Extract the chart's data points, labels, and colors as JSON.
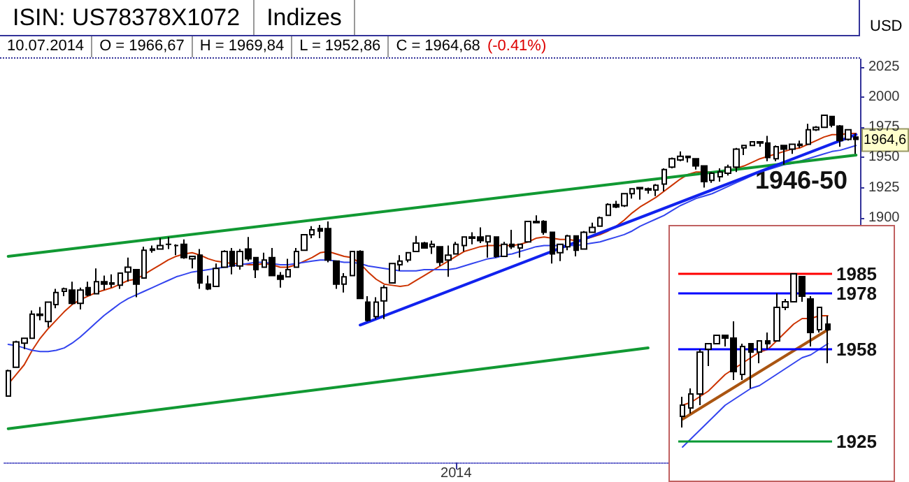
{
  "chart_data": [
    {
      "type": "candlestick",
      "title": "ISIN: US78378X1072",
      "subtitle": "Indizes",
      "ylabel": "USD",
      "color": "#000000",
      "annotations": [
        "10.07.2014",
        "O = 1966,67",
        "H = 1969,84",
        "L = 1952,86",
        "C = 1964,68",
        "(-0.41%)",
        "1964,6",
        "1946-50"
      ],
      "categories": [
        null,
        null,
        null,
        null,
        null,
        null,
        null,
        null,
        null,
        null,
        null,
        null,
        null,
        null,
        null,
        null,
        null,
        null,
        null,
        null,
        null,
        null,
        null,
        null,
        null,
        null,
        null,
        null,
        null,
        null,
        null,
        null,
        null,
        null,
        null,
        null,
        null,
        null,
        null,
        null,
        null,
        null,
        null,
        null,
        null,
        null,
        null,
        null,
        null,
        null,
        null,
        null,
        null,
        null,
        null,
        null,
        "2014",
        null,
        null,
        null,
        null,
        null,
        null,
        null,
        null,
        null,
        null,
        null,
        null,
        null,
        null,
        null,
        null,
        null,
        null,
        null,
        null,
        null,
        null,
        null,
        null,
        null,
        null,
        null,
        null,
        null,
        null,
        null,
        null,
        null,
        null,
        null,
        null,
        null,
        null,
        null,
        null,
        null,
        null,
        null,
        null,
        null,
        null,
        null,
        null,
        null,
        null
      ],
      "ohlc": [
        [
          1752,
          1774,
          1752,
          1773
        ],
        [
          1776,
          1798,
          1776,
          1797
        ],
        [
          1796,
          1800,
          1791,
          1800
        ],
        [
          1800,
          1823,
          1800,
          1820
        ],
        [
          1820,
          1826,
          1815,
          1819
        ],
        [
          1814,
          1830,
          1809,
          1830
        ],
        [
          1828,
          1841,
          1825,
          1838
        ],
        [
          1839,
          1842,
          1835,
          1841
        ],
        [
          1840,
          1847,
          1828,
          1829
        ],
        [
          1829,
          1842,
          1824,
          1840
        ],
        [
          1842,
          1847,
          1835,
          1836
        ],
        [
          1837,
          1858,
          1837,
          1847
        ],
        [
          1847,
          1852,
          1840,
          1845
        ],
        [
          1846,
          1853,
          1842,
          1845
        ],
        [
          1844,
          1854,
          1841,
          1854
        ],
        [
          1855,
          1867,
          1847,
          1859
        ],
        [
          1857,
          1857,
          1834,
          1845
        ],
        [
          1850,
          1876,
          1850,
          1873
        ],
        [
          1874,
          1877,
          1871,
          1873
        ],
        [
          1874,
          1883,
          1874,
          1877
        ],
        [
          1878,
          1884,
          1874,
          1878
        ],
        [
          1877,
          1878,
          1869,
          1877
        ],
        [
          1878,
          1882,
          1866,
          1867
        ],
        [
          1866,
          1868,
          1858,
          1868
        ],
        [
          1869,
          1874,
          1841,
          1846
        ],
        [
          1845,
          1852,
          1840,
          1841
        ],
        [
          1843,
          1862,
          1843,
          1858
        ],
        [
          1859,
          1873,
          1859,
          1872
        ],
        [
          1872,
          1875,
          1853,
          1860
        ],
        [
          1860,
          1874,
          1857,
          1872
        ],
        [
          1874,
          1884,
          1864,
          1866
        ],
        [
          1867,
          1867,
          1850,
          1857
        ],
        [
          1859,
          1871,
          1859,
          1865
        ],
        [
          1867,
          1875,
          1852,
          1852
        ],
        [
          1852,
          1855,
          1842,
          1849
        ],
        [
          1851,
          1866,
          1851,
          1857
        ],
        [
          1859,
          1875,
          1859,
          1872
        ],
        [
          1873,
          1886,
          1873,
          1886
        ],
        [
          1886,
          1893,
          1883,
          1890
        ],
        [
          1891,
          1894,
          1883,
          1889
        ],
        [
          1891,
          1897,
          1863,
          1865
        ],
        [
          1864,
          1864,
          1841,
          1845
        ],
        [
          1845,
          1854,
          1838,
          1851
        ],
        [
          1852,
          1872,
          1852,
          1872
        ],
        [
          1872,
          1873,
          1833,
          1833
        ],
        [
          1830,
          1835,
          1814,
          1815
        ],
        [
          1818,
          1834,
          1816,
          1830
        ],
        [
          1831,
          1844,
          1816,
          1842
        ],
        [
          1846,
          1862,
          1846,
          1862
        ],
        [
          1861,
          1869,
          1856,
          1864
        ],
        [
          1865,
          1871,
          1863,
          1871
        ],
        [
          1872,
          1885,
          1872,
          1879
        ],
        [
          1879,
          1880,
          1875,
          1875
        ],
        [
          1876,
          1881,
          1870,
          1878
        ],
        [
          1876,
          1876,
          1860,
          1863
        ],
        [
          1865,
          1877,
          1851,
          1869
        ],
        [
          1870,
          1880,
          1870,
          1878
        ],
        [
          1877,
          1884,
          1872,
          1884
        ],
        [
          1884,
          1888,
          1878,
          1883
        ],
        [
          1884,
          1892,
          1879,
          1881
        ],
        [
          1880,
          1885,
          1867,
          1885
        ],
        [
          1884,
          1884,
          1867,
          1868
        ],
        [
          1868,
          1880,
          1868,
          1878
        ],
        [
          1878,
          1890,
          1874,
          1876
        ],
        [
          1875,
          1878,
          1867,
          1878
        ],
        [
          1880,
          1897,
          1880,
          1897
        ],
        [
          1896,
          1902,
          1896,
          1897
        ],
        [
          1897,
          1898,
          1886,
          1888
        ],
        [
          1888,
          1888,
          1862,
          1870
        ],
        [
          1871,
          1878,
          1864,
          1878
        ],
        [
          1876,
          1886,
          1873,
          1885
        ],
        [
          1885,
          1885,
          1868,
          1873
        ],
        [
          1874,
          1889,
          1874,
          1888
        ],
        [
          1888,
          1896,
          1888,
          1892
        ],
        [
          1893,
          1901,
          1893,
          1900
        ],
        [
          1902,
          1912,
          1902,
          1911
        ],
        [
          1911,
          1914,
          1908,
          1909
        ],
        [
          1910,
          1920,
          1909,
          1920
        ],
        [
          1920,
          1924,
          1916,
          1924
        ],
        [
          1924,
          1925,
          1915,
          1925
        ],
        [
          1923,
          1925,
          1920,
          1924
        ],
        [
          1923,
          1928,
          1918,
          1927
        ],
        [
          1928,
          1941,
          1922,
          1940
        ],
        [
          1942,
          1950,
          1941,
          1949
        ],
        [
          1948,
          1955,
          1947,
          1951
        ],
        [
          1951,
          1951,
          1946,
          1950
        ],
        [
          1949,
          1949,
          1940,
          1943
        ],
        [
          1943,
          1943,
          1925,
          1930
        ],
        [
          1931,
          1938,
          1929,
          1937
        ],
        [
          1934,
          1941,
          1930,
          1938
        ],
        [
          1937,
          1944,
          1935,
          1942
        ],
        [
          1942,
          1958,
          1938,
          1957
        ],
        [
          1958,
          1960,
          1952,
          1960
        ],
        [
          1960,
          1963,
          1960,
          1963
        ],
        [
          1963,
          1963,
          1959,
          1962
        ],
        [
          1962,
          1968,
          1947,
          1950
        ],
        [
          1949,
          1960,
          1947,
          1959
        ],
        [
          1960,
          1960,
          1944,
          1957
        ],
        [
          1957,
          1961,
          1953,
          1961
        ],
        [
          1961,
          1964,
          1958,
          1960
        ],
        [
          1961,
          1978,
          1961,
          1973
        ],
        [
          1973,
          1976,
          1972,
          1975
        ],
        [
          1975,
          1985,
          1975,
          1985
        ],
        [
          1984,
          1984,
          1975,
          1977
        ],
        [
          1976,
          1977,
          1959,
          1964
        ],
        [
          1965,
          1973,
          1964,
          1973
        ],
        [
          1967,
          1970,
          1953,
          1965
        ]
      ],
      "series": [
        {
          "type": "line",
          "color": "#cc3300",
          "values": [
            1762,
            1770,
            1778,
            1790,
            1800,
            1808,
            1815,
            1822,
            1828,
            1832,
            1835,
            1838,
            1840,
            1842,
            1845,
            1848,
            1849,
            1853,
            1857,
            1861,
            1865,
            1868,
            1870,
            1871,
            1869,
            1866,
            1864,
            1863,
            1862,
            1862,
            1861,
            1861,
            1862,
            1861,
            1859,
            1859,
            1861,
            1864,
            1867,
            1871,
            1872,
            1870,
            1868,
            1867,
            1862,
            1855,
            1849,
            1845,
            1844,
            1843,
            1844,
            1848,
            1852,
            1856,
            1860,
            1864,
            1868,
            1872,
            1874,
            1876,
            1877,
            1877,
            1877,
            1877,
            1878,
            1880,
            1883,
            1884,
            1883,
            1882,
            1882,
            1881,
            1882,
            1884,
            1886,
            1889,
            1893,
            1898,
            1904,
            1909,
            1913,
            1917,
            1922,
            1927,
            1932,
            1936,
            1938,
            1938,
            1938,
            1938,
            1939,
            1941,
            1943,
            1946,
            1949,
            1951,
            1953,
            1955,
            1957,
            1958,
            1961,
            1964,
            1967,
            1969,
            1969,
            1970,
            1970
          ]
        },
        {
          "type": "line",
          "color": "#3344ee",
          "values": [
            1795,
            1794,
            1792,
            1790,
            1789,
            1789,
            1790,
            1792,
            1796,
            1801,
            1807,
            1813,
            1819,
            1824,
            1829,
            1833,
            1836,
            1839,
            1842,
            1845,
            1848,
            1851,
            1853,
            1855,
            1856,
            1857,
            1858,
            1859,
            1860,
            1861,
            1862,
            1863,
            1863,
            1862,
            1861,
            1861,
            1862,
            1863,
            1864,
            1865,
            1865,
            1864,
            1863,
            1863,
            1862,
            1860,
            1859,
            1858,
            1857,
            1856,
            1856,
            1856,
            1857,
            1857,
            1857,
            1857,
            1858,
            1860,
            1862,
            1864,
            1866,
            1867,
            1869,
            1870,
            1872,
            1874,
            1876,
            1877,
            1877,
            1877,
            1877,
            1877,
            1878,
            1879,
            1880,
            1882,
            1884,
            1886,
            1889,
            1893,
            1896,
            1899,
            1902,
            1906,
            1910,
            1913,
            1916,
            1918,
            1920,
            1923,
            1926,
            1929,
            1932,
            1935,
            1938,
            1940,
            1942,
            1944,
            1945,
            1947,
            1949,
            1951,
            1953,
            1955,
            1956,
            1958,
            1960
          ]
        },
        {
          "type": "line",
          "color": "#119933",
          "values": [
            1868,
            null,
            null,
            null,
            null,
            null,
            null,
            null,
            null,
            null,
            null,
            null,
            null,
            null,
            null,
            null,
            null,
            null,
            null,
            null,
            null,
            null,
            null,
            null,
            null,
            null,
            null,
            null,
            null,
            null,
            null,
            null,
            null,
            null,
            null,
            null,
            null,
            null,
            null,
            null,
            null,
            null,
            null,
            null,
            null,
            null,
            null,
            null,
            null,
            null,
            null,
            null,
            null,
            null,
            null,
            null,
            null,
            null,
            null,
            null,
            null,
            null,
            null,
            null,
            null,
            null,
            null,
            null,
            null,
            null,
            null,
            null,
            null,
            null,
            null,
            null,
            null,
            null,
            null,
            null,
            null,
            null,
            null,
            null,
            null,
            null,
            null,
            null,
            null,
            null,
            null,
            null,
            null,
            null,
            null,
            null,
            null,
            null,
            null,
            null,
            null,
            null,
            null,
            null,
            null,
            null,
            1952
          ]
        },
        {
          "type": "line",
          "color": "#119933",
          "values": [
            1725,
            null,
            null,
            null,
            null,
            null,
            null,
            null,
            null,
            null,
            null,
            null,
            null,
            null,
            null,
            null,
            null,
            null,
            null,
            null,
            null,
            null,
            null,
            null,
            null,
            null,
            null,
            null,
            null,
            null,
            null,
            null,
            null,
            null,
            null,
            null,
            null,
            null,
            null,
            null,
            null,
            null,
            null,
            null,
            null,
            null,
            null,
            null,
            null,
            null,
            null,
            null,
            null,
            null,
            null,
            null,
            null,
            null,
            null,
            null,
            null,
            null,
            null,
            null,
            null,
            null,
            null,
            null,
            null,
            null,
            null,
            null,
            null,
            null,
            null,
            null,
            null,
            null,
            null,
            null,
            1792,
            null,
            null,
            null,
            null,
            null,
            null,
            null,
            null,
            null,
            null,
            null,
            null,
            null,
            null,
            null,
            null,
            null,
            null,
            null,
            null,
            null,
            null,
            null,
            null,
            null,
            null
          ]
        },
        {
          "type": "line",
          "color": "#1122ee",
          "values": [
            null,
            null,
            null,
            null,
            null,
            null,
            null,
            null,
            null,
            null,
            null,
            null,
            null,
            null,
            null,
            null,
            null,
            null,
            null,
            null,
            null,
            null,
            null,
            null,
            null,
            null,
            null,
            null,
            null,
            null,
            null,
            null,
            null,
            null,
            null,
            null,
            null,
            null,
            null,
            null,
            null,
            null,
            null,
            null,
            1811,
            null,
            null,
            null,
            null,
            null,
            null,
            null,
            null,
            null,
            null,
            null,
            null,
            null,
            null,
            null,
            null,
            null,
            null,
            null,
            null,
            null,
            null,
            null,
            null,
            null,
            null,
            null,
            null,
            null,
            null,
            null,
            null,
            null,
            null,
            null,
            null,
            null,
            null,
            null,
            null,
            null,
            null,
            null,
            null,
            null,
            null,
            null,
            null,
            null,
            null,
            null,
            null,
            null,
            null,
            null,
            null,
            null,
            null,
            null,
            null,
            null,
            1969
          ]
        }
      ],
      "ylim": [
        1697,
        2032
      ],
      "yticks": [
        1900,
        1925,
        1950,
        1975,
        2000,
        2025
      ],
      "grid": false,
      "marker": "none",
      "line_style": "solid"
    },
    {
      "type": "candlestick",
      "color": "#000000",
      "categories": [
        null,
        null,
        null,
        null,
        null,
        null,
        null,
        null,
        null,
        null,
        null,
        null,
        null,
        null,
        null,
        null,
        null,
        null
      ],
      "ohlc": [
        [
          1934,
          1941,
          1930,
          1938
        ],
        [
          1937,
          1944,
          1935,
          1942
        ],
        [
          1942,
          1958,
          1938,
          1957
        ],
        [
          1958,
          1960,
          1952,
          1960
        ],
        [
          1960,
          1963,
          1960,
          1963
        ],
        [
          1963,
          1963,
          1959,
          1962
        ],
        [
          1962,
          1968,
          1947,
          1950
        ],
        [
          1949,
          1960,
          1947,
          1959
        ],
        [
          1960,
          1960,
          1944,
          1957
        ],
        [
          1957,
          1961,
          1953,
          1961
        ],
        [
          1961,
          1964,
          1958,
          1960
        ],
        [
          1961,
          1978,
          1961,
          1973
        ],
        [
          1973,
          1976,
          1972,
          1975
        ],
        [
          1975,
          1985,
          1975,
          1985
        ],
        [
          1984,
          1984,
          1975,
          1977
        ],
        [
          1976,
          1977,
          1959,
          1964
        ],
        [
          1965,
          1973,
          1964,
          1973
        ],
        [
          1967,
          1970,
          1953,
          1965
        ]
      ],
      "series": [
        {
          "type": "line",
          "color": "#cc3300",
          "values": [
            1938,
            1939,
            1941,
            1943,
            1946,
            1949,
            1951,
            1953,
            1955,
            1957,
            1958,
            1961,
            1964,
            1967,
            1969,
            1969,
            1970,
            1970
          ]
        },
        {
          "type": "line",
          "color": "#3344ee",
          "values": [
            1923,
            1926,
            1929,
            1932,
            1935,
            1938,
            1940,
            1942,
            1944,
            1945,
            1947,
            1949,
            1951,
            1953,
            1955,
            1956,
            1958,
            1960
          ]
        },
        {
          "type": "line",
          "color": "#aa5511",
          "values": [
            1933,
            null,
            null,
            null,
            null,
            null,
            null,
            null,
            null,
            null,
            null,
            null,
            null,
            null,
            null,
            null,
            null,
            1965
          ]
        }
      ],
      "ref_lines": [
        {
          "axis": "y",
          "value": 1985,
          "color": "#ff0000"
        },
        {
          "axis": "y",
          "value": 1978,
          "color": "#0000ff"
        },
        {
          "axis": "y",
          "value": 1958,
          "color": "#0000ff"
        },
        {
          "axis": "y",
          "value": 1925,
          "color": "#009933"
        }
      ],
      "ylim": [
        1911,
        2002
      ],
      "yticks": [
        1925,
        1958,
        1978,
        1985
      ],
      "tick_labels": "y",
      "grid": false,
      "marker": "none",
      "line_style": "solid"
    }
  ]
}
